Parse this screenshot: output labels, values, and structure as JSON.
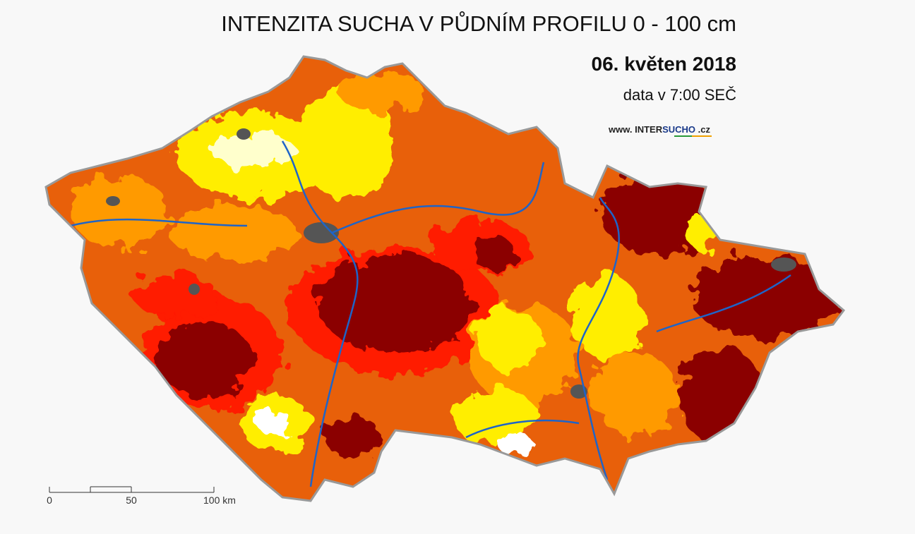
{
  "header": {
    "title": "INTENZITA SUCHA V PŮDNÍM PROFILU 0 - 100 cm",
    "date": "06. květen 2018",
    "data_time": "data v 7:00 SEČ"
  },
  "logo": {
    "prefix": "www.",
    "brand_a": "INTER",
    "brand_b": "SUCHO",
    "suffix": ".cz"
  },
  "scale": {
    "labels": [
      "0",
      "50",
      "100 km"
    ]
  }
}
